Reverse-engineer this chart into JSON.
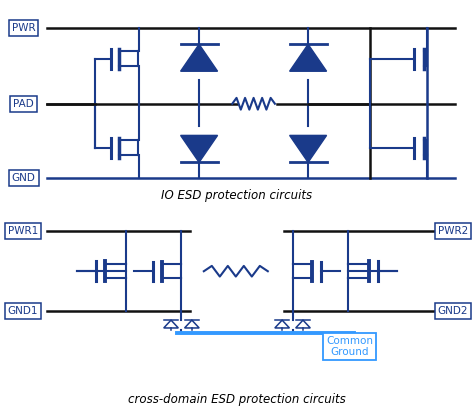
{
  "bg_color": "#ffffff",
  "line_color": "#1a3a8a",
  "diode_fill": "#1a3a8a",
  "common_ground_color": "#3399ff",
  "top_caption": "IO ESD protection circuits",
  "bottom_caption": "cross-domain ESD protection circuits",
  "common_ground_label": "Common\nGround"
}
